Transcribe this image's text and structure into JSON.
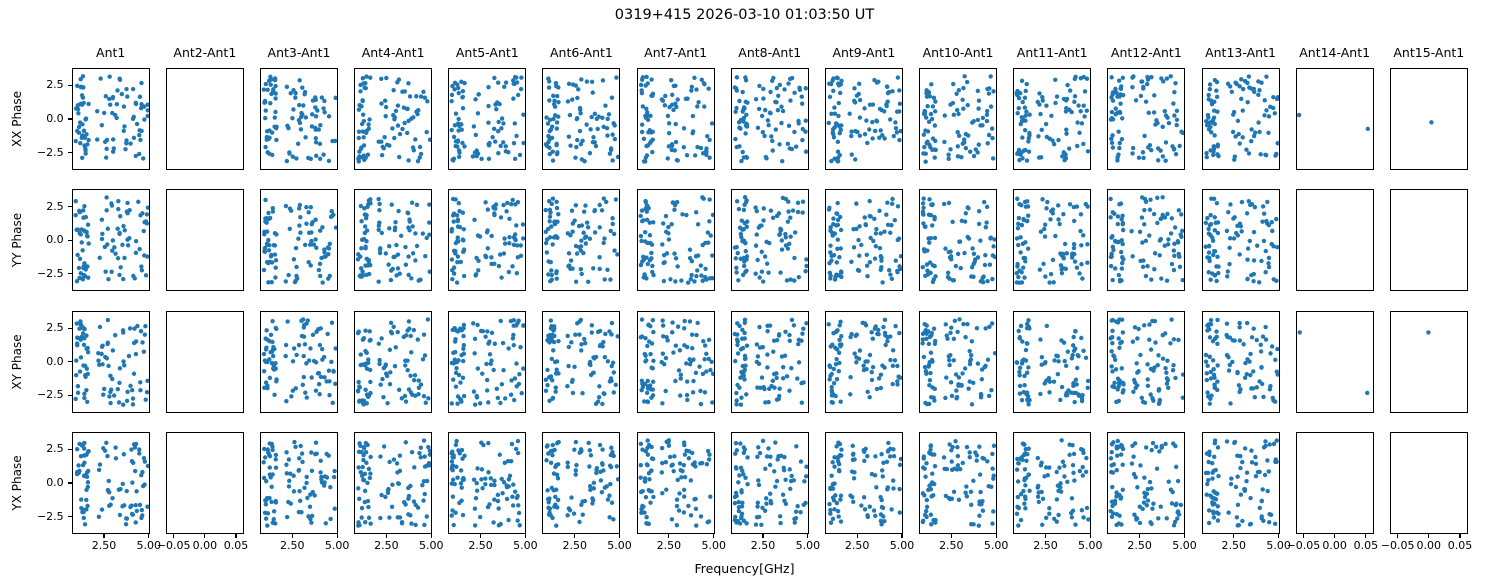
{
  "figure": {
    "background": "#ffffff",
    "title": "0319+415 2026-03-10 01:03:50 UT"
  },
  "chart_data": {
    "type": "scatter",
    "title": "0319+415 2026-03-10 01:03:50 UT",
    "xlabel": "Frequency[GHz]",
    "grid": {
      "rows": 4,
      "cols": 15,
      "sharex_per_column": true,
      "sharey": true,
      "gridlines": false,
      "legend": "none"
    },
    "row_labels": [
      "XX Phase",
      "YY Phase",
      "XY Phase",
      "YX Phase"
    ],
    "columns": [
      {
        "title": "Ant1",
        "kind": "dense"
      },
      {
        "title": "Ant2-Ant1",
        "kind": "empty"
      },
      {
        "title": "Ant3-Ant1",
        "kind": "dense"
      },
      {
        "title": "Ant4-Ant1",
        "kind": "dense"
      },
      {
        "title": "Ant5-Ant1",
        "kind": "dense"
      },
      {
        "title": "Ant6-Ant1",
        "kind": "dense"
      },
      {
        "title": "Ant7-Ant1",
        "kind": "dense"
      },
      {
        "title": "Ant8-Ant1",
        "kind": "dense"
      },
      {
        "title": "Ant9-Ant1",
        "kind": "dense"
      },
      {
        "title": "Ant10-Ant1",
        "kind": "dense"
      },
      {
        "title": "Ant11-Ant1",
        "kind": "dense"
      },
      {
        "title": "Ant12-Ant1",
        "kind": "dense"
      },
      {
        "title": "Ant13-Ant1",
        "kind": "dense"
      },
      {
        "title": "Ant14-Ant1",
        "kind": "sparse"
      },
      {
        "title": "Ant15-Ant1",
        "kind": "sparse"
      }
    ],
    "marker": {
      "color": "#1f77b4",
      "radius_px": 2.2
    },
    "axis_color": "#000000",
    "y_axis": {
      "lim": [
        -3.8,
        3.8
      ],
      "ticks": [
        2.5,
        0.0,
        -2.5
      ],
      "tick_labels": [
        "2.5",
        "0.0",
        "−2.5"
      ],
      "labels_on": "left-column-only"
    },
    "x_axis_dense": {
      "lim": [
        0.7,
        5.05
      ],
      "ticks": [
        2.5,
        5.0
      ],
      "tick_labels": [
        "2.50",
        "5.00"
      ],
      "labels_on": "bottom-row-only"
    },
    "x_axis_empty": {
      "lim": [
        -0.0625,
        0.0625
      ],
      "ticks": [
        -0.05,
        0.0,
        0.05
      ],
      "tick_labels": [
        "−0.05",
        "0.00",
        "0.05"
      ],
      "labels_on": "bottom-row-only"
    },
    "dense_profile": {
      "description": "random phase points (radians) vs frequency: tight vertical band at low frequency plus scattered points at higher frequency",
      "band_points": 38,
      "band_x_range": [
        0.85,
        1.6
      ],
      "scatter_points": 58,
      "scatter_x_range": [
        2.05,
        5.0
      ],
      "y_range": [
        -3.25,
        3.25
      ],
      "seed": 7
    },
    "sparse_points": {
      "0,13": [
        [
          -0.059,
          0.3
        ],
        [
          0.054,
          -0.75
        ]
      ],
      "0,14": [
        [
          0.004,
          -0.25
        ]
      ],
      "2,13": [
        [
          -0.058,
          2.25
        ],
        [
          0.053,
          -2.35
        ]
      ],
      "2,14": [
        [
          -0.001,
          2.25
        ]
      ]
    }
  }
}
